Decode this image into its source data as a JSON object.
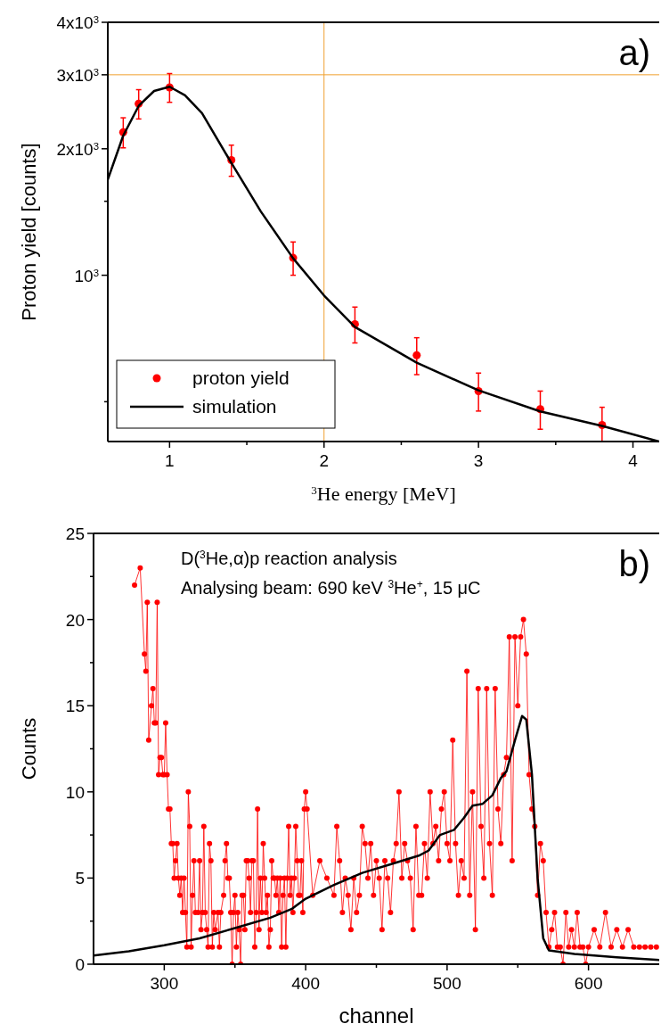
{
  "chart_data": [
    {
      "type": "scatter",
      "xlabel": "$^{3}$He energy [MeV]",
      "ylabel": "Proton yield [counts]",
      "log": "y",
      "xlim": [
        0.6,
        4.17
      ],
      "xticks": [
        1,
        {
          "value": 1.5,
          "label": null
        },
        2,
        {
          "value": 2.5,
          "label": null
        },
        3,
        {
          "value": 3.5,
          "label": null
        },
        4
      ],
      "ylim": [
        402,
        4000
      ],
      "yticks": [
        {
          "value": 500,
          "label": null
        },
        {
          "value": 1000,
          "label": "10$^{3}$"
        },
        {
          "value": 1500,
          "label": null
        },
        {
          "value": 2000,
          "label": "2x10$^{3}$"
        },
        {
          "value": 3000,
          "label": "3x10$^{3}$"
        },
        {
          "value": 4000,
          "label": "4x10$^{3}$"
        }
      ],
      "legend": "bottom left",
      "grid": false,
      "ref_lines": [
        {
          "axis": "x",
          "value": 2,
          "color": "#f0a030"
        },
        {
          "axis": "y",
          "value": 3000,
          "color": "#f0a030"
        }
      ],
      "annotations": [
        "a)"
      ],
      "series": [
        {
          "name": "proton yield",
          "color": "#ff0000",
          "marker": "circle",
          "x": [
            0.7,
            0.8,
            1.0,
            1.4,
            1.8,
            2.2,
            2.6,
            3.0,
            3.4,
            3.8
          ],
          "values": [
            2190,
            2560,
            2800,
            1880,
            1100,
            765,
            645,
            530,
            480,
            440
          ],
          "errors": [
            180,
            205,
            220,
            160,
            100,
            75,
            65,
            55,
            50,
            45
          ]
        },
        {
          "name": "simulation",
          "type": "line",
          "color": "#000000",
          "marker": "none",
          "x": [
            0.6,
            0.7,
            0.8,
            0.9,
            1.0,
            1.1,
            1.21,
            1.4,
            1.59,
            1.8,
            2.0,
            2.2,
            2.6,
            3.0,
            3.4,
            3.8,
            4.17
          ],
          "values": [
            1690,
            2150,
            2530,
            2745,
            2810,
            2680,
            2430,
            1850,
            1420,
            1097,
            895,
            753,
            619,
            532,
            474,
            438,
            402
          ]
        }
      ]
    },
    {
      "type": "line",
      "xlabel": "channel",
      "ylabel": "Counts",
      "xlim": [
        250,
        650
      ],
      "xticks": [
        300,
        {
          "value": 350,
          "label": null
        },
        400,
        {
          "value": 450,
          "label": null
        },
        500,
        {
          "value": 550,
          "label": null
        },
        600
      ],
      "ylim": [
        0,
        25
      ],
      "yticks": [
        0,
        {
          "value": 2.5,
          "label": null
        },
        5,
        {
          "value": 7.5,
          "label": null
        },
        10,
        {
          "value": 12.5,
          "label": null
        },
        15,
        {
          "value": 17.5,
          "label": null
        },
        20,
        {
          "value": 22.5,
          "label": null
        },
        25
      ],
      "legend": false,
      "grid": false,
      "annotations": [
        "D($^{3}$He,α)p reaction analysis",
        "Analysing beam: 690 keV $^{3}$He$^{+}$, 15 μC",
        "b)"
      ],
      "series": [
        {
          "color": "#ff0000",
          "marker": "circle",
          "x": [
            279,
            283,
            286,
            287,
            288,
            289,
            291,
            292,
            293,
            294,
            295,
            296,
            297,
            298,
            299,
            300,
            301,
            302,
            303,
            304,
            305,
            306,
            307,
            308,
            309,
            310,
            311,
            312,
            313,
            314,
            315,
            316,
            317,
            318,
            319,
            320,
            321,
            322,
            324,
            325,
            326,
            327,
            328,
            329,
            330,
            331,
            332,
            333,
            334,
            335,
            336,
            338,
            339,
            340,
            342,
            343,
            344,
            345,
            346,
            347,
            348,
            349,
            350,
            351,
            352,
            353,
            354,
            355,
            356,
            357,
            358,
            359,
            360,
            361,
            362,
            363,
            364,
            365,
            366,
            367,
            368,
            369,
            370,
            371,
            372,
            373,
            374,
            375,
            376,
            377,
            378,
            379,
            380,
            381,
            382,
            383,
            384,
            385,
            386,
            387,
            388,
            389,
            390,
            391,
            392,
            393,
            394,
            395,
            396,
            397,
            398,
            399,
            400,
            401,
            405,
            410,
            415,
            420,
            422,
            424,
            426,
            428,
            430,
            432,
            434,
            436,
            438,
            440,
            442,
            444,
            446,
            448,
            450,
            452,
            454,
            456,
            458,
            460,
            462,
            464,
            466,
            468,
            470,
            472,
            474,
            476,
            478,
            480,
            482,
            484,
            486,
            488,
            490,
            492,
            494,
            496,
            498,
            500,
            502,
            504,
            506,
            508,
            510,
            512,
            514,
            516,
            518,
            520,
            522,
            524,
            526,
            528,
            530,
            532,
            534,
            536,
            538,
            540,
            542,
            544,
            546,
            548,
            550,
            552,
            554,
            556,
            558,
            560,
            562,
            564,
            566,
            568,
            570,
            572,
            574,
            576,
            578,
            580,
            582,
            584,
            586,
            588,
            590,
            592,
            594,
            596,
            598,
            600,
            604,
            608,
            612,
            616,
            620,
            624,
            628,
            632,
            636,
            640,
            644,
            648
          ],
          "values": [
            22,
            23,
            18,
            17,
            21,
            13,
            15,
            16,
            14,
            14,
            21,
            11,
            12,
            12,
            11,
            11,
            14,
            11,
            9,
            9,
            7,
            7,
            5,
            6,
            7,
            5,
            4,
            5,
            3,
            5,
            3,
            1,
            10,
            8,
            1,
            4,
            6,
            3,
            3,
            6,
            2,
            3,
            8,
            3,
            2,
            1,
            7,
            6,
            1,
            3,
            2,
            3,
            1,
            3,
            4,
            6,
            7,
            5,
            5,
            3,
            0,
            3,
            4,
            1,
            3,
            2,
            0,
            4,
            4,
            2,
            6,
            6,
            5,
            3,
            6,
            6,
            1,
            3,
            9,
            2,
            5,
            3,
            7,
            5,
            3,
            4,
            1,
            2,
            6,
            5,
            5,
            4,
            5,
            3,
            5,
            1,
            4,
            5,
            1,
            5,
            8,
            4,
            5,
            3,
            5,
            8,
            6,
            4,
            4,
            6,
            3,
            9,
            10,
            9,
            4,
            6,
            5,
            4,
            8,
            6,
            3,
            5,
            4,
            2,
            5,
            3,
            4,
            8,
            7,
            5,
            7,
            4,
            6,
            5,
            2,
            6,
            5,
            3,
            6,
            7,
            10,
            5,
            7,
            6,
            5,
            2,
            8,
            4,
            4,
            7,
            5,
            10,
            7,
            8,
            6,
            9,
            10,
            7,
            6,
            13,
            7,
            4,
            6,
            5,
            17,
            4,
            10,
            2,
            16,
            8,
            5,
            16,
            7,
            4,
            16,
            9,
            7,
            11,
            12,
            19,
            6,
            19,
            15,
            19,
            20,
            18,
            11,
            9,
            8,
            4,
            7,
            6,
            3,
            1,
            2,
            3,
            1,
            1,
            0,
            3,
            1,
            2,
            1,
            3,
            1,
            1,
            0,
            1,
            2,
            1,
            3,
            1,
            2,
            1,
            2,
            1,
            1,
            1,
            1,
            1
          ]
        },
        {
          "color": "#000000",
          "marker": "none",
          "x": [
            250,
            275,
            300,
            325,
            350,
            375,
            390,
            400,
            420,
            440,
            460,
            480,
            487,
            495,
            505,
            512,
            518,
            525,
            532,
            538,
            542,
            548,
            553,
            556,
            560,
            564,
            568,
            572,
            590,
            620,
            650
          ],
          "values": [
            0.5,
            0.75,
            1.1,
            1.5,
            2.1,
            2.7,
            3.2,
            3.8,
            4.6,
            5.3,
            5.8,
            6.3,
            6.6,
            7.5,
            7.8,
            8.5,
            9.2,
            9.3,
            9.8,
            10.8,
            11.2,
            13,
            14.4,
            14.2,
            11,
            5,
            1.5,
            0.8,
            0.6,
            0.4,
            0.25
          ]
        }
      ]
    }
  ]
}
